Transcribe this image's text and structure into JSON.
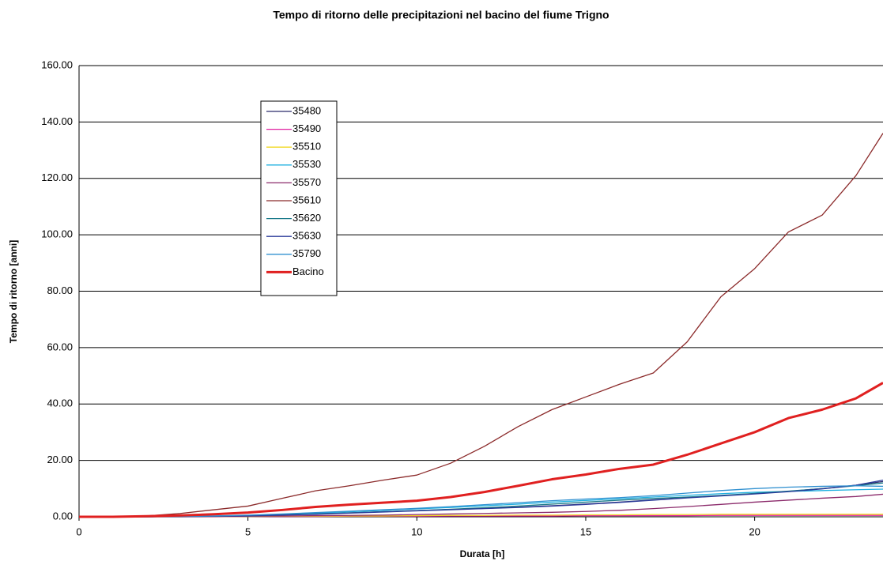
{
  "chart_data": {
    "type": "line",
    "title": "Tempo di ritorno delle precipitazioni nel bacino del fiume Trigno",
    "xlabel": "Durata [h]",
    "ylabel": "Tempo di ritorno [anni]",
    "x": [
      0,
      1,
      2,
      3,
      4,
      5,
      6,
      7,
      8,
      9,
      10,
      11,
      12,
      13,
      14,
      15,
      16,
      17,
      18,
      19,
      20,
      21,
      22,
      23,
      23.8
    ],
    "xlim": [
      0,
      23.8
    ],
    "xticks": [
      0,
      5,
      10,
      15,
      20
    ],
    "ylim": [
      0,
      160
    ],
    "yticks": [
      {
        "value": 0,
        "label": "0.00"
      },
      {
        "value": 20,
        "label": "20.00"
      },
      {
        "value": 40,
        "label": "40.00"
      },
      {
        "value": 60,
        "label": "60.00"
      },
      {
        "value": 80,
        "label": "80.00"
      },
      {
        "value": 100,
        "label": "100.00"
      },
      {
        "value": 120,
        "label": "120.00"
      },
      {
        "value": 140,
        "label": "140.00"
      },
      {
        "value": 160,
        "label": "160.00"
      }
    ],
    "grid": true,
    "legend": "upper left",
    "series": [
      {
        "name": "35480",
        "color": "#2b2b6b",
        "values": [
          0,
          0,
          0,
          0.1,
          0.2,
          0.4,
          0.7,
          1,
          1.4,
          1.8,
          2.2,
          2.6,
          3,
          3.4,
          3.9,
          4.5,
          5.2,
          6,
          6.8,
          7.5,
          8.2,
          9,
          10,
          11.2,
          12.5
        ]
      },
      {
        "name": "35490",
        "color": "#e020a0",
        "values": [
          0,
          0,
          0,
          0,
          0,
          0.1,
          0.1,
          0.1,
          0.2,
          0.2,
          0.2,
          0.3,
          0.3,
          0.3,
          0.3,
          0.4,
          0.4,
          0.4,
          0.4,
          0.5,
          0.5,
          0.5,
          0.5,
          0.5,
          0.5
        ]
      },
      {
        "name": "35510",
        "color": "#f0d820",
        "values": [
          0,
          0,
          0,
          0,
          0.1,
          0.1,
          0.2,
          0.2,
          0.3,
          0.3,
          0.4,
          0.5,
          0.5,
          0.6,
          0.6,
          0.7,
          0.7,
          0.8,
          0.8,
          0.9,
          0.9,
          0.9,
          0.9,
          0.9,
          0.9
        ]
      },
      {
        "name": "35530",
        "color": "#20b0e0",
        "values": [
          0,
          0,
          0,
          0.1,
          0.3,
          0.5,
          0.9,
          1.3,
          1.8,
          2.3,
          2.8,
          3.3,
          3.9,
          4.5,
          5.2,
          5.8,
          6.4,
          7,
          7.6,
          8.2,
          8.7,
          9,
          9.3,
          9.6,
          9.8
        ]
      },
      {
        "name": "35570",
        "color": "#8b2a6b",
        "values": [
          0,
          0,
          0,
          0,
          0.1,
          0.2,
          0.3,
          0.4,
          0.5,
          0.6,
          0.8,
          1,
          1.2,
          1.4,
          1.6,
          1.9,
          2.3,
          2.9,
          3.6,
          4.4,
          5.2,
          5.9,
          6.6,
          7.2,
          8
        ]
      },
      {
        "name": "35610",
        "color": "#8b2a2a",
        "values": [
          0,
          0,
          0.3,
          1.2,
          2.5,
          3.8,
          6.5,
          9.2,
          11,
          13,
          14.8,
          19,
          25,
          32,
          38,
          42.5,
          47,
          51,
          62,
          78,
          88,
          101,
          107,
          121,
          136
        ]
      },
      {
        "name": "35620",
        "color": "#1a7a8a",
        "values": [
          0,
          0,
          0,
          0.1,
          0.2,
          0.4,
          0.7,
          1,
          1.4,
          1.8,
          2.2,
          2.7,
          3.2,
          3.8,
          4.5,
          5.2,
          5.9,
          6.5,
          7,
          7.6,
          8.3,
          9.1,
          10,
          11,
          12
        ]
      },
      {
        "name": "35630",
        "color": "#2a3a9a",
        "values": [
          0,
          0,
          0,
          0.1,
          0.2,
          0.3,
          0.6,
          0.9,
          1.3,
          1.7,
          2.1,
          2.5,
          2.9,
          3.3,
          3.8,
          4.4,
          5.1,
          5.9,
          6.7,
          7.4,
          8.1,
          8.9,
          9.9,
          11.2,
          13
        ]
      },
      {
        "name": "35790",
        "color": "#3090d0",
        "values": [
          0,
          0,
          0,
          0.1,
          0.3,
          0.6,
          1,
          1.5,
          2,
          2.5,
          3,
          3.6,
          4.3,
          5,
          5.7,
          6.3,
          6.8,
          7.5,
          8.4,
          9.3,
          10,
          10.5,
          10.8,
          11,
          10.8
        ]
      },
      {
        "name": "Bacino",
        "color": "#e02020",
        "values": [
          0,
          0,
          0.2,
          0.5,
          0.9,
          1.5,
          2.4,
          3.5,
          4.3,
          5,
          5.7,
          7,
          8.8,
          11,
          13.3,
          15,
          17,
          18.5,
          22,
          26,
          30,
          35,
          38,
          42,
          47.5
        ]
      }
    ]
  }
}
